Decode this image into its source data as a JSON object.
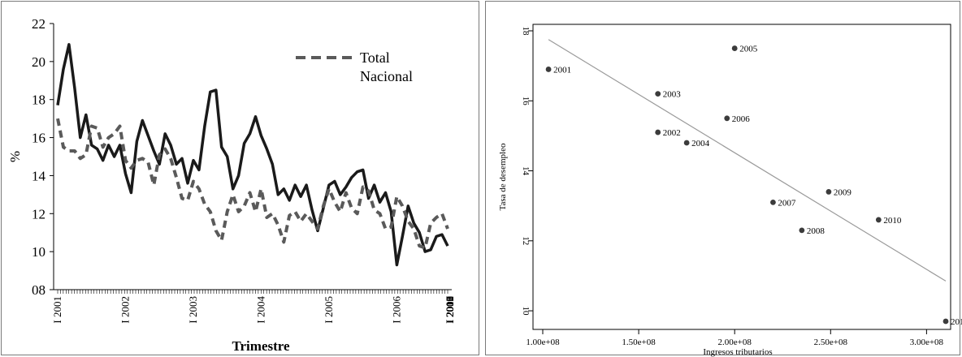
{
  "chart_data": [
    {
      "type": "line",
      "title": "",
      "xlabel": "Trimestre",
      "ylabel": "%",
      "ylim": [
        8,
        22
      ],
      "y_ticks": [
        "08",
        "10",
        "12",
        "14",
        "16",
        "18",
        "20",
        "22"
      ],
      "x_tick_labels": [
        "I 2001",
        "I 2002",
        "I 2003",
        "I 2004",
        "I 2005",
        "I 2006",
        "I 2007",
        "I 2008",
        "I 2009",
        "I 2010",
        "I 2011",
        "I 2012"
      ],
      "x_start": 2001.0,
      "x_step": 0.0833333,
      "legend_position": "top-right",
      "series": [
        {
          "name": "",
          "style": "solid",
          "color": "#1a1a1a",
          "values": [
            17.7,
            19.6,
            20.9,
            18.6,
            16.0,
            17.2,
            15.6,
            15.4,
            14.8,
            15.6,
            15.0,
            15.6,
            14.1,
            13.1,
            15.8,
            16.9,
            16.1,
            15.3,
            14.6,
            16.2,
            15.6,
            14.6,
            14.9,
            13.6,
            14.8,
            14.3,
            16.6,
            18.4,
            18.5,
            15.5,
            15.0,
            13.3,
            14.0,
            15.7,
            16.2,
            17.1,
            16.1,
            15.4,
            14.6,
            13.0,
            13.3,
            12.7,
            13.5,
            12.9,
            13.5,
            12.2,
            11.1,
            12.3,
            13.5,
            13.7,
            13.0,
            13.4,
            13.9,
            14.2,
            14.3,
            12.8,
            13.5,
            12.6,
            13.1,
            12.1,
            9.3,
            10.8,
            12.4,
            11.5,
            11.0,
            10.0,
            10.1,
            10.8,
            10.9,
            10.3
          ]
        },
        {
          "name": "Total Nacional",
          "style": "dashed",
          "color": "#5a5a5a",
          "values": [
            17.0,
            15.5,
            15.3,
            15.3,
            14.9,
            15.1,
            16.6,
            16.5,
            15.5,
            16.0,
            16.2,
            16.6,
            14.8,
            14.4,
            14.8,
            14.9,
            14.7,
            13.5,
            15.1,
            15.4,
            14.9,
            13.9,
            12.8,
            12.7,
            13.7,
            13.3,
            12.5,
            12.1,
            11.1,
            10.6,
            12.1,
            13.0,
            12.1,
            12.4,
            13.1,
            12.1,
            13.3,
            11.8,
            12.0,
            11.4,
            10.5,
            11.9,
            12.1,
            11.6,
            12.0,
            11.6,
            11.2,
            12.4,
            13.3,
            12.6,
            12.1,
            13.1,
            12.3,
            12.0,
            13.4,
            13.2,
            12.2,
            12.0,
            11.2,
            11.3,
            12.9,
            12.4,
            11.6,
            11.2,
            10.3,
            10.2,
            11.5,
            11.8,
            12.0,
            11.2
          ]
        }
      ]
    },
    {
      "type": "scatter",
      "title": "",
      "xlabel": "Ingresos tributarios",
      "ylabel": "Tasa de desempleo",
      "xlim": [
        100000000.0,
        310000000.0
      ],
      "ylim": [
        9.7,
        18.0
      ],
      "x_ticks": [
        100000000.0,
        150000000.0,
        200000000.0,
        250000000.0,
        300000000.0
      ],
      "x_tick_labels": [
        "1.00e+08",
        "1.50e+08",
        "2.00e+08",
        "2.50e+08",
        "3.00e+08"
      ],
      "y_ticks": [
        10,
        12,
        14,
        16,
        18
      ],
      "y_tick_labels": [
        "10",
        "12",
        "14",
        "16",
        "18"
      ],
      "points": [
        {
          "label": "2001",
          "x": 103000000.0,
          "y": 16.9
        },
        {
          "label": "2002",
          "x": 160000000.0,
          "y": 15.1
        },
        {
          "label": "2003",
          "x": 160000000.0,
          "y": 16.2
        },
        {
          "label": "2004",
          "x": 175000000.0,
          "y": 14.8
        },
        {
          "label": "2005",
          "x": 200000000.0,
          "y": 17.5
        },
        {
          "label": "2006",
          "x": 196000000.0,
          "y": 15.5
        },
        {
          "label": "2007",
          "x": 220000000.0,
          "y": 13.1
        },
        {
          "label": "2008",
          "x": 235000000.0,
          "y": 12.3
        },
        {
          "label": "2009",
          "x": 249000000.0,
          "y": 13.4
        },
        {
          "label": "2010",
          "x": 275000000.0,
          "y": 12.6
        },
        {
          "label": "201",
          "x": 310000000.0,
          "y": 9.7
        }
      ],
      "fit_line": {
        "x": [
          103000000.0,
          310000000.0
        ],
        "y": [
          17.75,
          10.85
        ]
      }
    }
  ]
}
